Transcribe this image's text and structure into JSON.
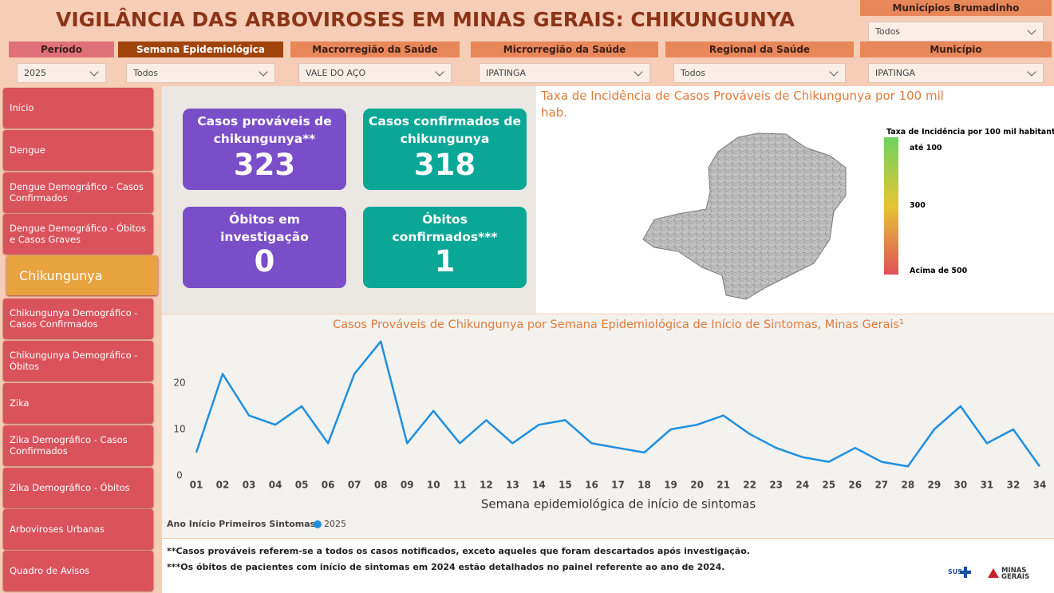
{
  "header": {
    "title": "VIGILÂNCIA DAS ARBOVIROSES EM MINAS GERAIS: CHIKUNGUNYA"
  },
  "filters": [
    {
      "label": "Municípios Brumadinho",
      "value": "Todos"
    },
    {
      "label": "Período",
      "value": "2025"
    },
    {
      "label": "Semana Epidemiológica",
      "value": "Todos"
    },
    {
      "label": "Macrorregião da Saúde",
      "value": "VALE DO AÇO"
    },
    {
      "label": "Microrregião da Saúde",
      "value": "IPATINGA"
    },
    {
      "label": "Regional da Saúde",
      "value": "Todos"
    },
    {
      "label": "Município",
      "value": "IPATINGA"
    }
  ],
  "nav": [
    "Início",
    "Dengue",
    "Dengue Demográfico - Casos Confirmados",
    "Dengue Demográfico - Óbitos e Casos Graves",
    "Chikungunya",
    "Chikungunya Demográfico - Casos Confirmados",
    "Chikungunya Demográfico - Óbitos",
    "Zika",
    "Zika Demográfico - Casos Confirmados",
    "Zika Demográfico - Óbitos",
    "Arboviroses Urbanas",
    "Quadro de Avisos"
  ],
  "cards": [
    {
      "label": "Casos prováveis de chikungunya**",
      "value": 323
    },
    {
      "label": "Casos confirmados de chikungunya",
      "value": 318
    },
    {
      "label": "Óbitos em investigação",
      "value": 0
    },
    {
      "label": "Óbitos confirmados***",
      "value": 1
    }
  ],
  "map": {
    "title": "Taxa de Incidência de Casos Prováveis de Chikungunya por 100 mil hab.",
    "legend_title": "Taxa de Incidência por 100 mil habitantes",
    "legend_labels": [
      "até 100",
      "300",
      "Acima de 500"
    ]
  },
  "chart_data": {
    "type": "line",
    "title": "Casos Prováveis de Chikungunya por Semana Epidemiológica de Início de Sintomas, Minas Gerais¹",
    "x_label": "Semana epidemiológica de início de sintomas",
    "legend_title": "Ano Início Primeiros Sintomas",
    "categories": [
      "01",
      "02",
      "03",
      "04",
      "05",
      "06",
      "07",
      "08",
      "09",
      "10",
      "11",
      "12",
      "13",
      "14",
      "15",
      "16",
      "17",
      "18",
      "19",
      "20",
      "21",
      "22",
      "23",
      "24",
      "25",
      "26",
      "27",
      "28",
      "29",
      "30",
      "31",
      "32",
      "34"
    ],
    "series": [
      {
        "name": "2025",
        "color": "#1f8fe0",
        "values": [
          5,
          22,
          13,
          11,
          15,
          7,
          22,
          29,
          7,
          14,
          7,
          12,
          7,
          11,
          12,
          7,
          6,
          5,
          10,
          11,
          13,
          9,
          6,
          4,
          3,
          6,
          3,
          2,
          10,
          15,
          7,
          10,
          2
        ]
      }
    ],
    "ylim": [
      0,
      30
    ],
    "yticks": [
      0,
      10,
      20
    ],
    "grid": false
  },
  "footnotes": [
    "**Casos prováveis referem-se a todos os casos notificados, exceto aqueles que foram descartados após investigação.",
    "***Os óbitos de pacientes com início de sintomas em 2024 estão detalhados no painel referente ao ano de 2024."
  ],
  "logos": [
    "SUS",
    "MINAS GERAIS"
  ]
}
